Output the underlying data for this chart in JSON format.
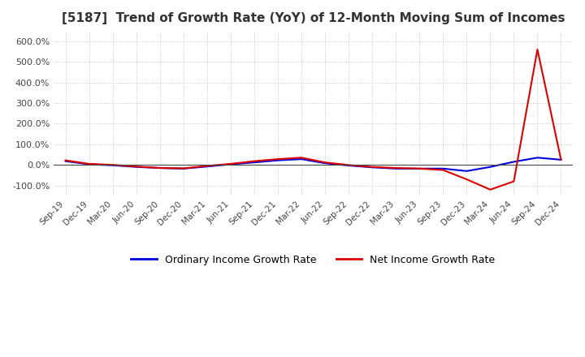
{
  "title": "[5187]  Trend of Growth Rate (YoY) of 12-Month Moving Sum of Incomes",
  "title_fontsize": 11,
  "ylim": [
    -150,
    650
  ],
  "yticks": [
    -100,
    0,
    100,
    200,
    300,
    400,
    500,
    600
  ],
  "background_color": "#ffffff",
  "grid_color": "#bbbbbb",
  "ordinary_color": "#0000dd",
  "net_color": "#dd0000",
  "legend_labels": [
    "Ordinary Income Growth Rate",
    "Net Income Growth Rate"
  ],
  "x_labels": [
    "Sep-19",
    "Dec-19",
    "Mar-20",
    "Jun-20",
    "Sep-20",
    "Dec-20",
    "Mar-21",
    "Jun-21",
    "Sep-21",
    "Dec-21",
    "Mar-22",
    "Jun-22",
    "Sep-22",
    "Dec-22",
    "Mar-23",
    "Jun-23",
    "Sep-23",
    "Dec-23",
    "Mar-24",
    "Jun-24",
    "Sep-24",
    "Dec-24"
  ],
  "ordinary_income": [
    18,
    3,
    -2,
    -10,
    -15,
    -18,
    -8,
    3,
    12,
    22,
    28,
    8,
    -3,
    -12,
    -18,
    -18,
    -18,
    -30,
    -10,
    15,
    35,
    25
  ],
  "net_income": [
    22,
    5,
    0,
    -8,
    -15,
    -17,
    -5,
    5,
    18,
    28,
    35,
    12,
    -1,
    -10,
    -15,
    -18,
    -25,
    -70,
    -120,
    -80,
    560,
    25
  ]
}
